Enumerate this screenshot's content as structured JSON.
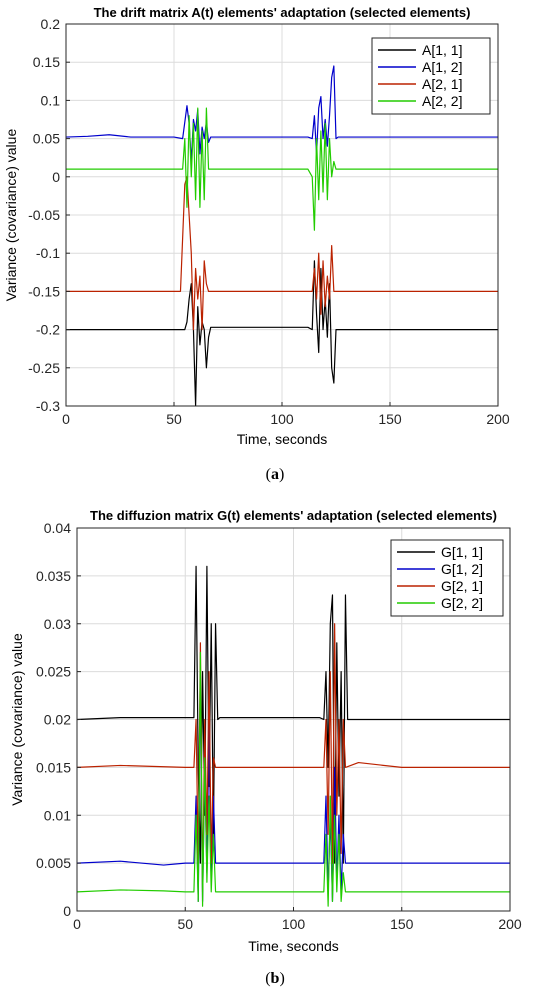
{
  "chart_data": [
    {
      "type": "line",
      "title": "The drift matrix A(t) elements' adaptation (selected elements)",
      "xlabel": "Time, seconds",
      "ylabel": "Variance (covariance) value",
      "xlim": [
        0,
        200
      ],
      "ylim": [
        -0.3,
        0.2
      ],
      "xticks": [
        0,
        50,
        100,
        150,
        200
      ],
      "yticks": [
        -0.3,
        -0.25,
        -0.2,
        -0.15,
        -0.1,
        -0.05,
        0,
        0.05,
        0.1,
        0.15,
        0.2
      ],
      "ytick_labels": [
        "-0.3",
        "-0.25",
        "-0.2",
        "-0.15",
        "-0.1",
        "-0.05",
        "0",
        "0.05",
        "0.1",
        "0.15",
        "0.2"
      ],
      "grid": true,
      "legend_position": "top-right",
      "caption_letter": "a",
      "series": [
        {
          "name": "A[1, 1]",
          "color": "#000000",
          "points": [
            [
              0,
              -0.2
            ],
            [
              50,
              -0.2
            ],
            [
              55,
              -0.2
            ],
            [
              56,
              -0.19
            ],
            [
              57,
              -0.16
            ],
            [
              58,
              -0.14
            ],
            [
              59,
              -0.2
            ],
            [
              60,
              -0.3
            ],
            [
              61,
              -0.17
            ],
            [
              62,
              -0.22
            ],
            [
              63,
              -0.19
            ],
            [
              64,
              -0.2
            ],
            [
              65,
              -0.25
            ],
            [
              66,
              -0.21
            ],
            [
              67,
              -0.197
            ],
            [
              112,
              -0.197
            ],
            [
              114,
              -0.2
            ],
            [
              115,
              -0.11
            ],
            [
              116,
              -0.18
            ],
            [
              117,
              -0.23
            ],
            [
              118,
              -0.12
            ],
            [
              119,
              -0.2
            ],
            [
              120,
              -0.16
            ],
            [
              121,
              -0.21
            ],
            [
              122,
              -0.14
            ],
            [
              123,
              -0.25
            ],
            [
              124,
              -0.27
            ],
            [
              125,
              -0.2
            ],
            [
              126,
              -0.2
            ],
            [
              200,
              -0.2
            ]
          ]
        },
        {
          "name": "A[1, 2]",
          "color": "#0000cc",
          "points": [
            [
              0,
              0.052
            ],
            [
              10,
              0.053
            ],
            [
              20,
              0.055
            ],
            [
              30,
              0.052
            ],
            [
              50,
              0.052
            ],
            [
              54,
              0.05
            ],
            [
              56,
              0.093
            ],
            [
              57,
              0.07
            ],
            [
              58,
              0.02
            ],
            [
              59,
              0.075
            ],
            [
              60,
              0.06
            ],
            [
              61,
              0.088
            ],
            [
              62,
              0.03
            ],
            [
              63,
              0.065
            ],
            [
              64,
              0.05
            ],
            [
              65,
              0.072
            ],
            [
              66,
              0.045
            ],
            [
              67,
              0.052
            ],
            [
              112,
              0.052
            ],
            [
              114,
              0.05
            ],
            [
              115,
              0.08
            ],
            [
              116,
              0.03
            ],
            [
              117,
              0.09
            ],
            [
              118,
              0.105
            ],
            [
              119,
              0.05
            ],
            [
              120,
              0.075
            ],
            [
              121,
              0.04
            ],
            [
              122,
              0.08
            ],
            [
              123,
              0.13
            ],
            [
              124,
              0.145
            ],
            [
              125,
              0.05
            ],
            [
              126,
              0.052
            ],
            [
              200,
              0.052
            ]
          ]
        },
        {
          "name": "A[2, 1]",
          "color": "#bb2200",
          "points": [
            [
              0,
              -0.15
            ],
            [
              50,
              -0.15
            ],
            [
              53,
              -0.15
            ],
            [
              54,
              -0.08
            ],
            [
              55,
              -0.01
            ],
            [
              56,
              0.0
            ],
            [
              57,
              -0.05
            ],
            [
              58,
              -0.1
            ],
            [
              59,
              -0.2
            ],
            [
              60,
              -0.12
            ],
            [
              61,
              -0.16
            ],
            [
              62,
              -0.13
            ],
            [
              63,
              -0.2
            ],
            [
              64,
              -0.11
            ],
            [
              65,
              -0.14
            ],
            [
              66,
              -0.15
            ],
            [
              112,
              -0.15
            ],
            [
              114,
              -0.15
            ],
            [
              115,
              -0.12
            ],
            [
              116,
              -0.16
            ],
            [
              117,
              -0.1
            ],
            [
              118,
              -0.18
            ],
            [
              119,
              -0.11
            ],
            [
              120,
              -0.17
            ],
            [
              121,
              -0.13
            ],
            [
              122,
              -0.16
            ],
            [
              123,
              -0.09
            ],
            [
              124,
              -0.15
            ],
            [
              200,
              -0.15
            ]
          ]
        },
        {
          "name": "A[2, 2]",
          "color": "#22cc00",
          "points": [
            [
              0,
              0.01
            ],
            [
              50,
              0.01
            ],
            [
              54,
              0.01
            ],
            [
              55,
              0.05
            ],
            [
              56,
              -0.04
            ],
            [
              57,
              0.08
            ],
            [
              58,
              0.0
            ],
            [
              59,
              0.07
            ],
            [
              60,
              -0.03
            ],
            [
              61,
              0.09
            ],
            [
              62,
              -0.04
            ],
            [
              63,
              0.06
            ],
            [
              64,
              -0.03
            ],
            [
              65,
              0.09
            ],
            [
              66,
              0.01
            ],
            [
              112,
              0.01
            ],
            [
              114,
              0.0
            ],
            [
              115,
              -0.07
            ],
            [
              116,
              0.05
            ],
            [
              117,
              -0.03
            ],
            [
              118,
              0.06
            ],
            [
              119,
              -0.02
            ],
            [
              120,
              0.07
            ],
            [
              121,
              -0.03
            ],
            [
              122,
              0.05
            ],
            [
              123,
              0.0
            ],
            [
              124,
              0.02
            ],
            [
              125,
              0.01
            ],
            [
              200,
              0.01
            ]
          ]
        }
      ]
    },
    {
      "type": "line",
      "title": "The diffuzion matrix G(t) elements' adaptation (selected elements)",
      "xlabel": "Time, seconds",
      "ylabel": "Variance (covariance) value",
      "xlim": [
        0,
        200
      ],
      "ylim": [
        0,
        0.04
      ],
      "xticks": [
        0,
        50,
        100,
        150,
        200
      ],
      "yticks": [
        0,
        0.005,
        0.01,
        0.015,
        0.02,
        0.025,
        0.03,
        0.035,
        0.04
      ],
      "ytick_labels": [
        "0",
        "0.005",
        "0.01",
        "0.015",
        "0.02",
        "0.025",
        "0.03",
        "0.035",
        "0.04"
      ],
      "grid": true,
      "legend_position": "top-right",
      "caption_letter": "b",
      "series": [
        {
          "name": "G[1, 1]",
          "color": "#000000",
          "points": [
            [
              0,
              0.02
            ],
            [
              20,
              0.0202
            ],
            [
              50,
              0.0202
            ],
            [
              54,
              0.0202
            ],
            [
              55,
              0.036
            ],
            [
              56,
              0.015
            ],
            [
              57,
              0.005
            ],
            [
              58,
              0.025
            ],
            [
              59,
              0.01
            ],
            [
              60,
              0.036
            ],
            [
              61,
              0.013
            ],
            [
              62,
              0.03
            ],
            [
              63,
              0.008
            ],
            [
              64,
              0.03
            ],
            [
              65,
              0.02
            ],
            [
              66,
              0.0202
            ],
            [
              112,
              0.0202
            ],
            [
              114,
              0.02
            ],
            [
              115,
              0.025
            ],
            [
              116,
              0.015
            ],
            [
              117,
              0.03
            ],
            [
              118,
              0.033
            ],
            [
              119,
              0.005
            ],
            [
              120,
              0.028
            ],
            [
              121,
              0.012
            ],
            [
              122,
              0.025
            ],
            [
              123,
              0.005
            ],
            [
              124,
              0.033
            ],
            [
              125,
              0.02
            ],
            [
              200,
              0.02
            ]
          ]
        },
        {
          "name": "G[1, 2]",
          "color": "#0000cc",
          "points": [
            [
              0,
              0.005
            ],
            [
              20,
              0.0052
            ],
            [
              40,
              0.0048
            ],
            [
              50,
              0.005
            ],
            [
              54,
              0.005
            ],
            [
              55,
              0.012
            ],
            [
              56,
              0.001
            ],
            [
              57,
              0.025
            ],
            [
              58,
              0.001
            ],
            [
              59,
              0.015
            ],
            [
              60,
              0.004
            ],
            [
              61,
              0.02
            ],
            [
              62,
              0.003
            ],
            [
              63,
              0.012
            ],
            [
              64,
              0.005
            ],
            [
              112,
              0.005
            ],
            [
              114,
              0.005
            ],
            [
              115,
              0.012
            ],
            [
              116,
              0.002
            ],
            [
              117,
              0.01
            ],
            [
              118,
              0.001
            ],
            [
              119,
              0.015
            ],
            [
              120,
              0.003
            ],
            [
              121,
              0.01
            ],
            [
              122,
              0.002
            ],
            [
              123,
              0.008
            ],
            [
              124,
              0.005
            ],
            [
              200,
              0.005
            ]
          ]
        },
        {
          "name": "G[2, 1]",
          "color": "#bb2200",
          "points": [
            [
              0,
              0.015
            ],
            [
              20,
              0.0152
            ],
            [
              50,
              0.015
            ],
            [
              54,
              0.015
            ],
            [
              55,
              0.02
            ],
            [
              56,
              0.005
            ],
            [
              57,
              0.028
            ],
            [
              58,
              0.002
            ],
            [
              59,
              0.02
            ],
            [
              60,
              0.008
            ],
            [
              61,
              0.025
            ],
            [
              62,
              0.005
            ],
            [
              63,
              0.016
            ],
            [
              64,
              0.015
            ],
            [
              112,
              0.015
            ],
            [
              114,
              0.015
            ],
            [
              115,
              0.02
            ],
            [
              116,
              0.008
            ],
            [
              117,
              0.025
            ],
            [
              118,
              0.005
            ],
            [
              119,
              0.03
            ],
            [
              120,
              0.01
            ],
            [
              121,
              0.02
            ],
            [
              122,
              0.006
            ],
            [
              123,
              0.02
            ],
            [
              124,
              0.015
            ],
            [
              130,
              0.0155
            ],
            [
              150,
              0.015
            ],
            [
              200,
              0.015
            ]
          ]
        },
        {
          "name": "G[2, 2]",
          "color": "#22cc00",
          "points": [
            [
              0,
              0.002
            ],
            [
              20,
              0.0022
            ],
            [
              40,
              0.0021
            ],
            [
              50,
              0.002
            ],
            [
              54,
              0.002
            ],
            [
              55,
              0.01
            ],
            [
              56,
              0.001
            ],
            [
              57,
              0.027
            ],
            [
              58,
              0.0005
            ],
            [
              59,
              0.016
            ],
            [
              60,
              0.003
            ],
            [
              61,
              0.012
            ],
            [
              62,
              0.002
            ],
            [
              63,
              0.008
            ],
            [
              64,
              0.002
            ],
            [
              112,
              0.002
            ],
            [
              114,
              0.002
            ],
            [
              115,
              0.008
            ],
            [
              116,
              0.0005
            ],
            [
              117,
              0.012
            ],
            [
              118,
              0.001
            ],
            [
              119,
              0.01
            ],
            [
              120,
              0.002
            ],
            [
              121,
              0.008
            ],
            [
              122,
              0.001
            ],
            [
              123,
              0.004
            ],
            [
              124,
              0.002
            ],
            [
              200,
              0.002
            ]
          ]
        }
      ]
    }
  ]
}
